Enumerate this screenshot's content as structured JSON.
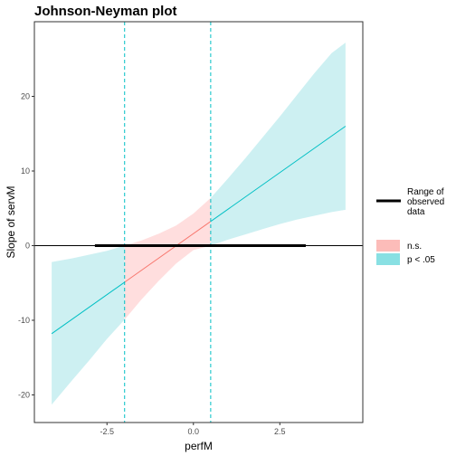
{
  "chart_data": {
    "type": "line",
    "title": "Johnson-Neyman plot",
    "xlabel": "perfM",
    "ylabel": "Slope of servM",
    "xlim": [
      -4.6,
      4.9
    ],
    "ylim": [
      -23.7,
      30.0
    ],
    "x_ticks": [
      -2.5,
      0.0,
      2.5
    ],
    "x_tick_labels": [
      "-2.5",
      "0.0",
      "2.5"
    ],
    "y_ticks": [
      -20,
      -10,
      0,
      10,
      20
    ],
    "y_tick_labels": [
      "-20",
      "-10",
      "0",
      "10",
      "20"
    ],
    "grid": false,
    "x_range": [
      -4.1,
      4.4
    ],
    "slope_line": {
      "x": [
        -4.1,
        4.4
      ],
      "y": [
        -11.8,
        16.0
      ]
    },
    "confidence_band": {
      "x": [
        -4.1,
        -3.5,
        -3.0,
        -2.5,
        -1.99,
        -1.5,
        -1.0,
        -0.5,
        0.0,
        0.5,
        1.0,
        1.5,
        2.0,
        2.5,
        3.0,
        3.5,
        4.0,
        4.4
      ],
      "lower": [
        -21.3,
        -18.0,
        -15.3,
        -12.5,
        -9.9,
        -7.2,
        -4.7,
        -2.4,
        -0.6,
        0.0,
        0.8,
        1.5,
        2.2,
        2.9,
        3.5,
        4.0,
        4.5,
        4.8
      ],
      "upper": [
        -2.2,
        -1.7,
        -1.2,
        -0.7,
        0.0,
        0.7,
        1.6,
        2.7,
        4.3,
        6.4,
        9.0,
        11.7,
        14.5,
        17.3,
        20.2,
        23.1,
        25.8,
        27.2
      ]
    },
    "jn_bounds": [
      -1.99,
      0.5
    ],
    "observed_range": [
      -2.85,
      3.25
    ],
    "colors": {
      "significant": "#00bfc4",
      "significant_fill": "#cdf0f2",
      "not_significant": "#f8766d",
      "not_significant_fill": "#ffdede",
      "reference_line": "#000000",
      "observed_range": "#000000"
    },
    "legend": {
      "position": "right",
      "range_label_lines": [
        "Range of",
        "observed",
        "data"
      ],
      "ns_label": "n.s.",
      "sig_label": "p < .05",
      "ns_swatch": "#fcbcb9",
      "sig_swatch": "#89e0e3"
    }
  }
}
